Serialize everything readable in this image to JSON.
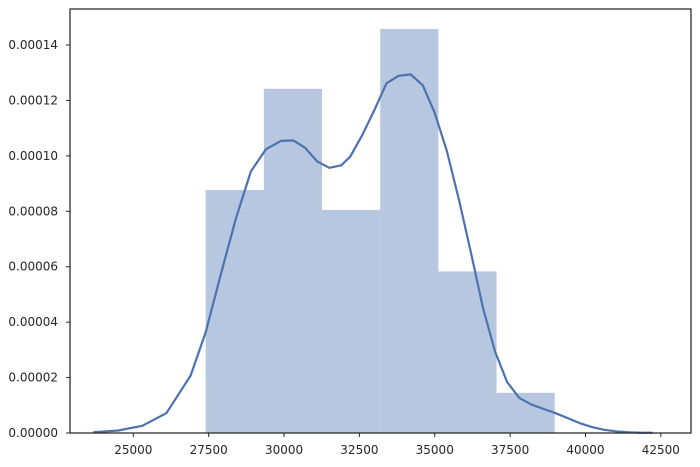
{
  "chart_data": {
    "type": "bar",
    "title": "",
    "xlabel": "",
    "ylabel": "",
    "xlim": [
      22900,
      43500
    ],
    "ylim": [
      0,
      0.000153
    ],
    "grid": false,
    "x_ticks": [
      25000,
      27500,
      30000,
      32500,
      35000,
      37500,
      40000,
      42500
    ],
    "x_tick_labels": [
      "25000",
      "27500",
      "30000",
      "32500",
      "35000",
      "37500",
      "40000",
      "42500"
    ],
    "y_ticks": [
      0,
      2e-05,
      4e-05,
      6e-05,
      8e-05,
      0.0001,
      0.00012,
      0.00014
    ],
    "y_tick_labels": [
      "0.00000",
      "0.00002",
      "0.00004",
      "0.00006",
      "0.00008",
      "0.00010",
      "0.00012",
      "0.00014"
    ],
    "histogram": {
      "bin_edges": [
        27400,
        29330,
        31260,
        33190,
        35120,
        37050,
        38980
      ],
      "density": [
        8.77e-05,
        0.0001242,
        8.05e-05,
        0.0001458,
        5.83e-05,
        1.45e-05
      ],
      "color": "#4c72b0",
      "alpha": 0.4
    },
    "kde": {
      "color": "#4c72b0",
      "x": [
        23700,
        24500,
        25300,
        26100,
        26900,
        27400,
        27900,
        28400,
        28900,
        29400,
        29900,
        30300,
        30700,
        31100,
        31500,
        31900,
        32200,
        32600,
        33000,
        33400,
        33800,
        34200,
        34600,
        35000,
        35400,
        35800,
        36200,
        36600,
        37000,
        37400,
        37800,
        38200,
        38600,
        39000,
        39400,
        39800,
        40200,
        40600,
        41000,
        41400,
        41800,
        42200
      ],
      "y": [
        3e-07,
        9e-07,
        2.6e-06,
        7.2e-06,
        2.07e-05,
        3.63e-05,
        5.71e-05,
        7.73e-05,
        9.44e-05,
        0.0001024,
        0.0001054,
        0.0001056,
        0.0001029,
        9.8e-05,
        9.57e-05,
        9.66e-05,
        9.98e-05,
        0.0001076,
        0.0001166,
        0.0001262,
        0.0001289,
        0.0001294,
        0.0001255,
        0.0001155,
        0.0001018,
        8.43e-05,
        6.51e-05,
        4.51e-05,
        2.94e-05,
        1.84e-05,
        1.27e-05,
        1.03e-05,
        8.7e-06,
        7.2e-06,
        5.4e-06,
        3.6e-06,
        2.2e-06,
        1.2e-06,
        6e-07,
        3e-07,
        1e-07,
        1e-07
      ]
    }
  }
}
